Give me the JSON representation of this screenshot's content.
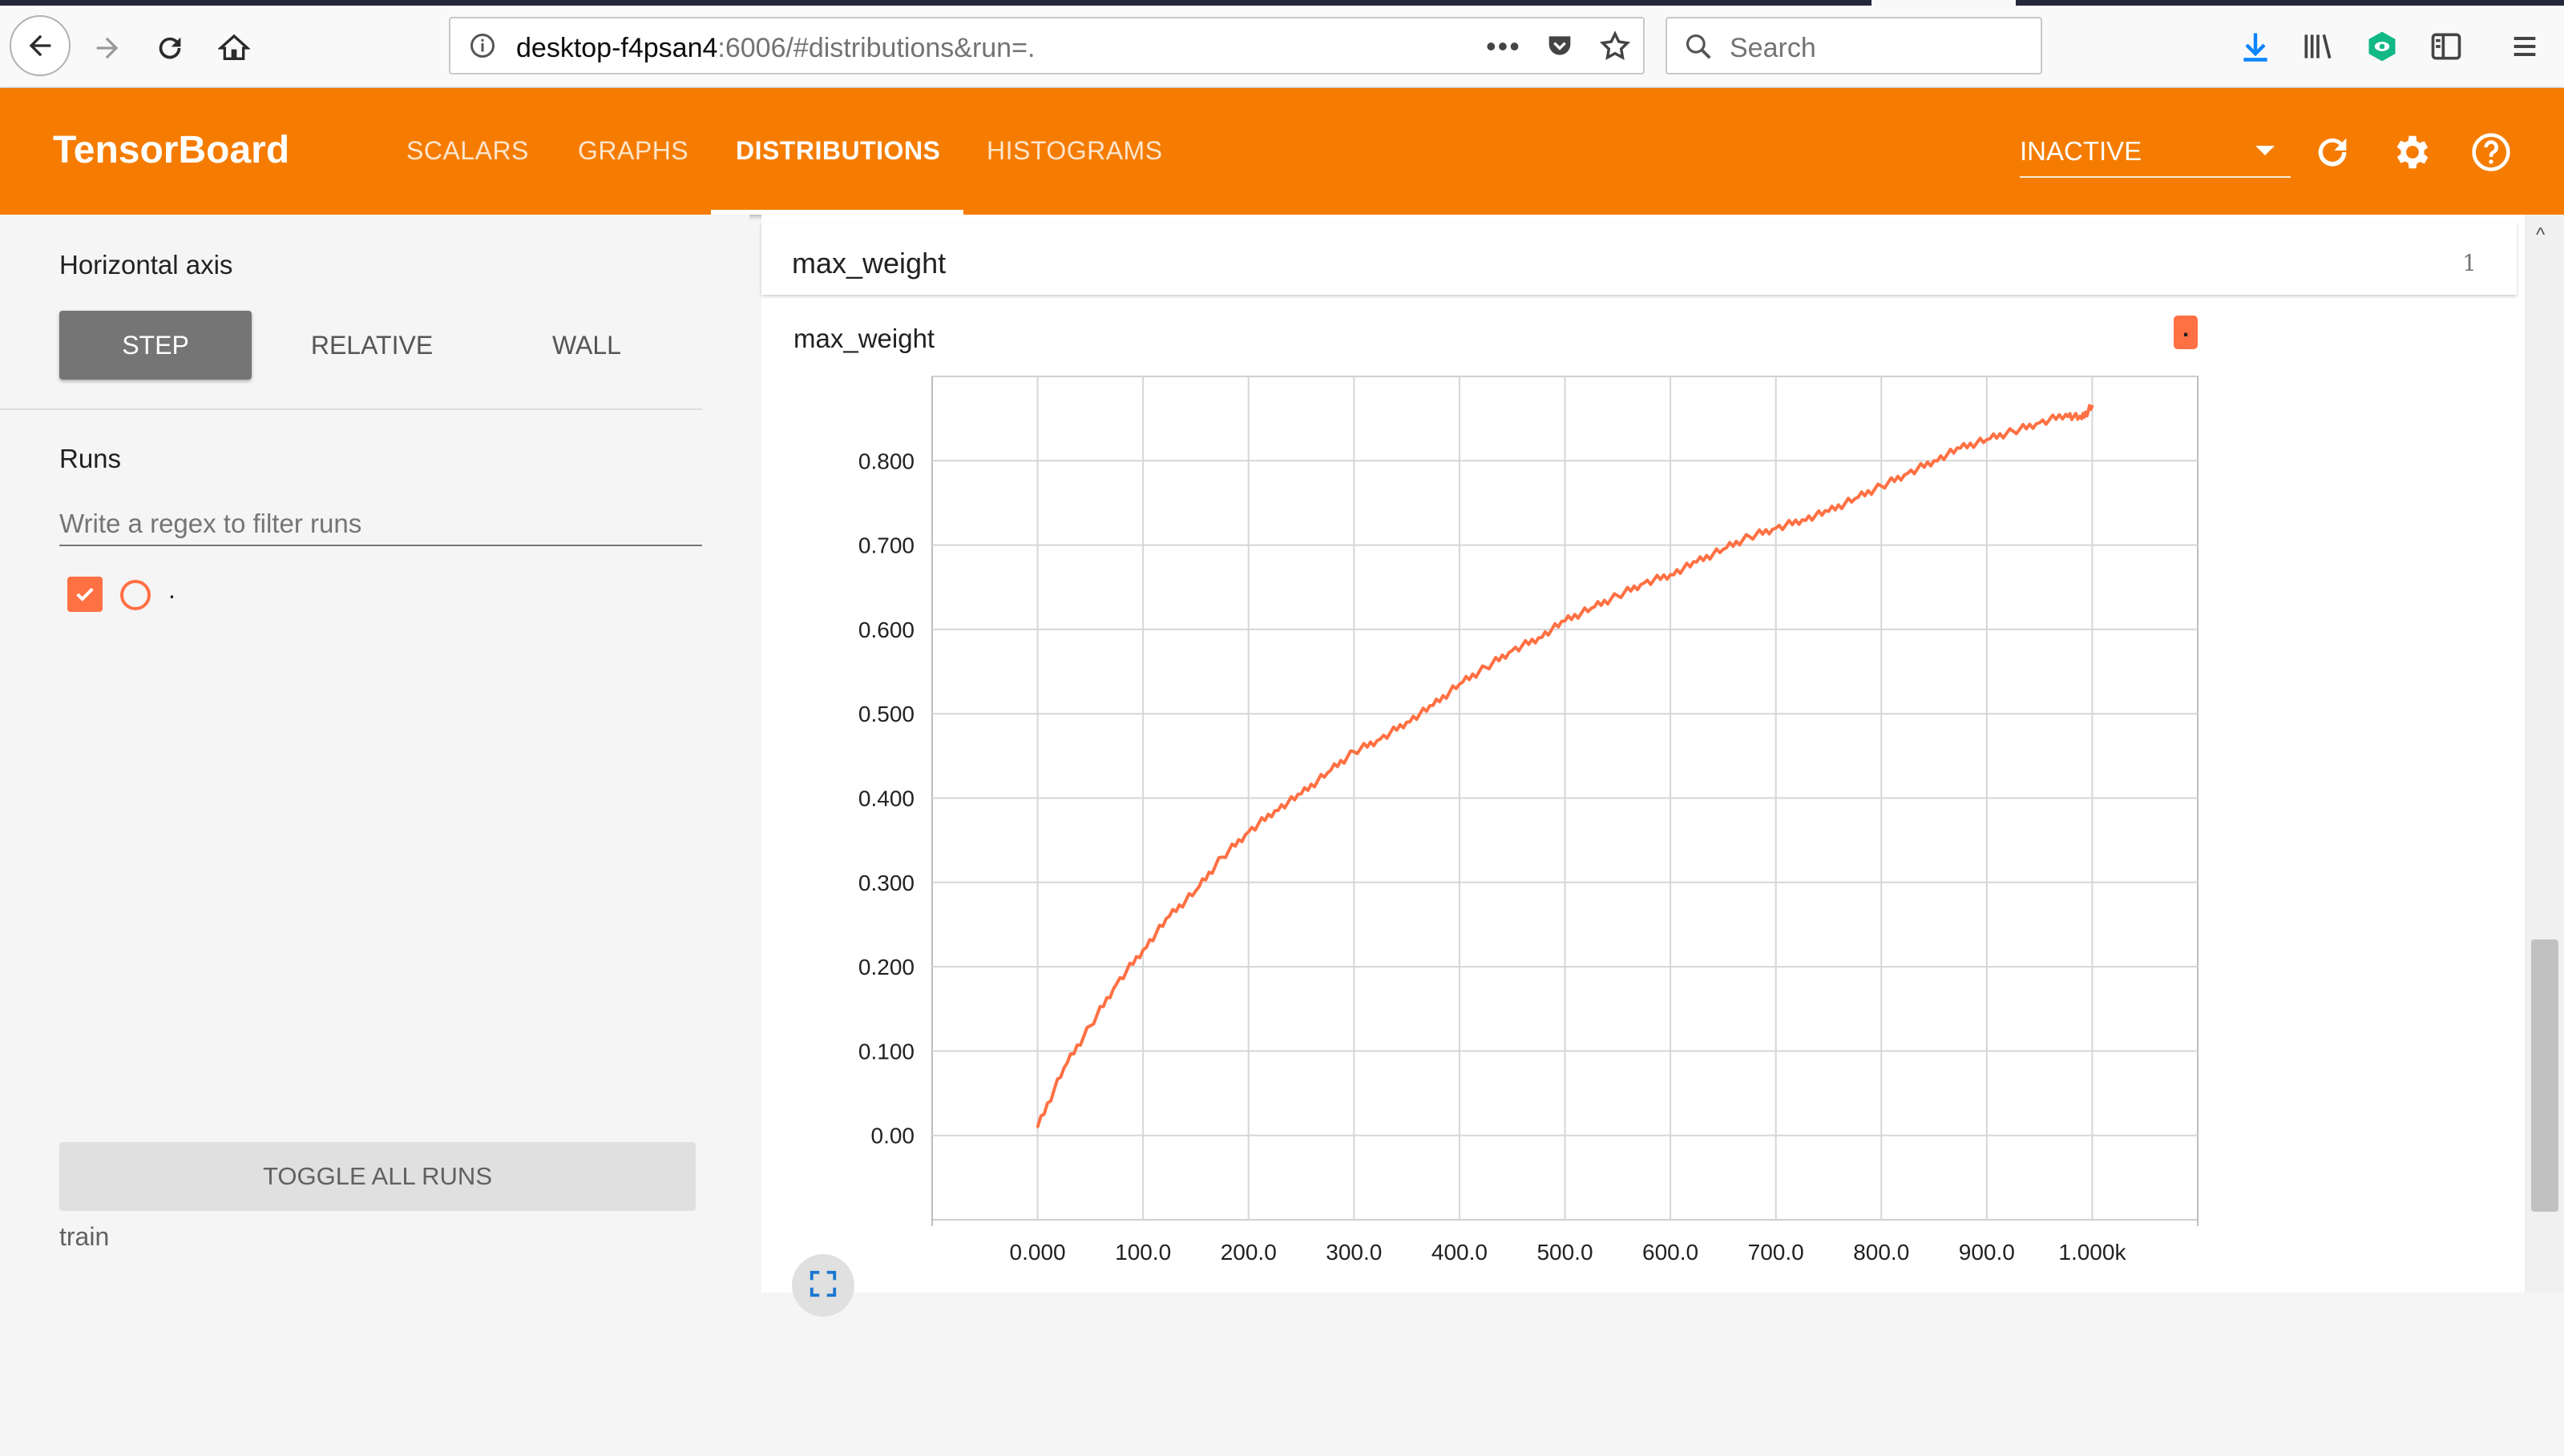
{
  "browser": {
    "url_host": "desktop-f4psan4",
    "url_rest": ":6006/#distributions&run=.",
    "search_placeholder": "Search"
  },
  "header": {
    "title": "TensorBoard",
    "tabs": [
      {
        "label": "SCALARS",
        "active": false
      },
      {
        "label": "GRAPHS",
        "active": false
      },
      {
        "label": "DISTRIBUTIONS",
        "active": true
      },
      {
        "label": "HISTOGRAMS",
        "active": false
      }
    ],
    "inactive_select": "INACTIVE"
  },
  "sidebar": {
    "horizontal_axis_label": "Horizontal axis",
    "axis_buttons": [
      {
        "label": "STEP",
        "selected": true
      },
      {
        "label": "RELATIVE",
        "selected": false
      },
      {
        "label": "WALL",
        "selected": false
      }
    ],
    "runs_label": "Runs",
    "regex_placeholder": "Write a regex to filter runs",
    "runs": [
      {
        "name": ".",
        "checked": true,
        "color": "#ff7043"
      }
    ],
    "toggle_all_label": "TOGGLE ALL RUNS",
    "log_dir": "train"
  },
  "main": {
    "category_title": "max_weight",
    "category_count": "1",
    "card_title": "max_weight",
    "run_badge": "."
  },
  "colors": {
    "accent": "#f57c00",
    "series": "#ff7043"
  },
  "chart_data": {
    "type": "line",
    "title": "max_weight",
    "xlabel": "",
    "ylabel": "",
    "xlim": [
      -100,
      1100
    ],
    "ylim": [
      -0.1,
      0.9
    ],
    "grid": true,
    "x_ticks": [
      0,
      100,
      200,
      300,
      400,
      500,
      600,
      700,
      800,
      900,
      1000
    ],
    "x_tick_labels": [
      "0.000",
      "100.0",
      "200.0",
      "300.0",
      "400.0",
      "500.0",
      "600.0",
      "700.0",
      "800.0",
      "900.0",
      "1.000k"
    ],
    "y_ticks": [
      0,
      0.1,
      0.2,
      0.3,
      0.4,
      0.5,
      0.6,
      0.7,
      0.8
    ],
    "y_tick_labels": [
      "0.00",
      "0.100",
      "0.200",
      "0.300",
      "0.400",
      "0.500",
      "0.600",
      "0.700",
      "0.800"
    ],
    "series": [
      {
        "color": "#ff7043",
        "x": [
          0,
          25,
          50,
          75,
          100,
          125,
          150,
          175,
          200,
          225,
          250,
          275,
          300,
          325,
          350,
          375,
          400,
          425,
          450,
          475,
          500,
          525,
          550,
          575,
          600,
          625,
          650,
          675,
          700,
          725,
          750,
          775,
          800,
          825,
          850,
          875,
          900,
          925,
          950,
          975,
          990,
          1000
        ],
        "y": [
          0.01,
          0.08,
          0.13,
          0.18,
          0.22,
          0.26,
          0.29,
          0.33,
          0.36,
          0.385,
          0.405,
          0.43,
          0.455,
          0.47,
          0.49,
          0.51,
          0.535,
          0.555,
          0.575,
          0.59,
          0.61,
          0.625,
          0.64,
          0.655,
          0.665,
          0.68,
          0.695,
          0.71,
          0.72,
          0.73,
          0.74,
          0.755,
          0.77,
          0.785,
          0.8,
          0.815,
          0.825,
          0.835,
          0.845,
          0.855,
          0.85,
          0.865
        ]
      }
    ]
  }
}
